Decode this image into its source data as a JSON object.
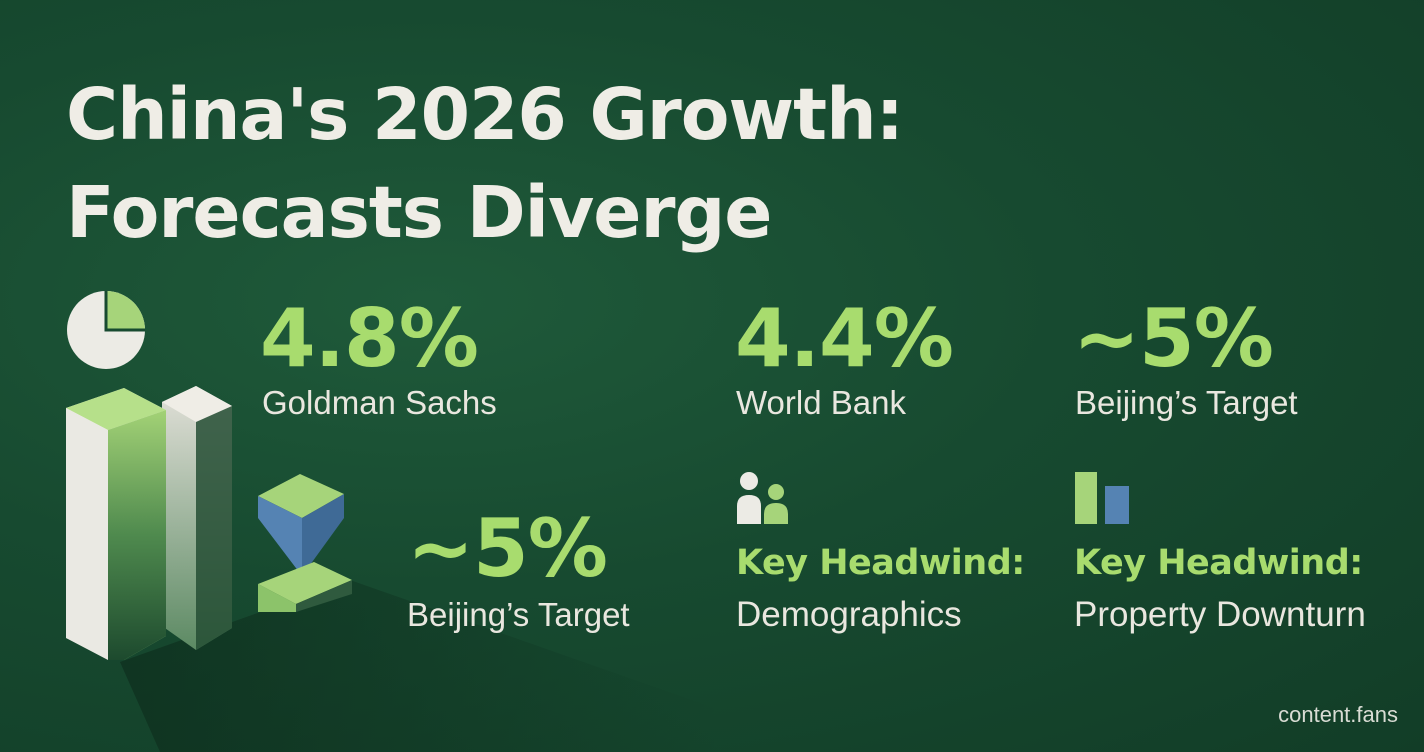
{
  "title": {
    "line1": "China's 2026 Growth:",
    "line2": "Forecasts Diverge"
  },
  "forecasts": [
    {
      "value": "4.8%",
      "source": "Goldman Sachs"
    },
    {
      "value": "4.4%",
      "source": "World Bank"
    },
    {
      "value": "~5%",
      "source": "Beijing’s Target"
    },
    {
      "value": "~5%",
      "source": "Beijing’s Target"
    }
  ],
  "headwinds": [
    {
      "title": "Key Headwind:",
      "label": "Demographics",
      "icon": "people-icon"
    },
    {
      "title": "Key Headwind:",
      "label": "Property Downturn",
      "icon": "bar-chart-icon"
    }
  ],
  "illustration": {
    "icons": [
      "pie-chart-icon",
      "bar-blocks-illustration",
      "cube-illustration"
    ]
  },
  "colors": {
    "background": "#174a30",
    "accent_green": "#a8dc6e",
    "text_light": "#efede6",
    "accent_blue": "#4d78a6"
  },
  "footer": "content.fans"
}
